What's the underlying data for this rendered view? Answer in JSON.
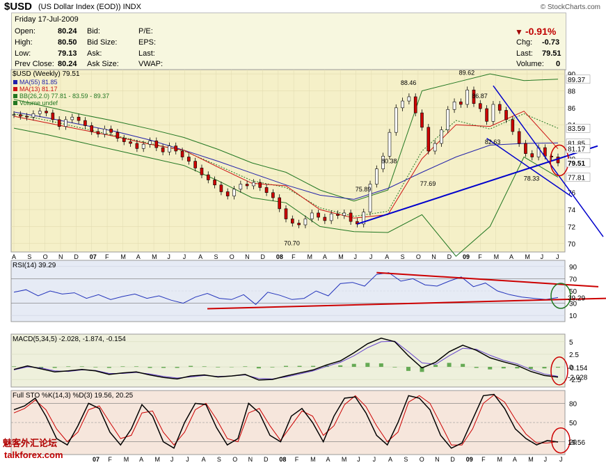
{
  "header": {
    "symbol": "$USD",
    "description": "(US Dollar Index (EOD))",
    "exchange": "INDX",
    "brand": "© StockCharts.com"
  },
  "quote": {
    "date": "Friday   17-Jul-2009",
    "open_label": "Open:",
    "open": "80.24",
    "high_label": "High:",
    "high": "80.50",
    "low_label": "Low:",
    "low": "79.13",
    "prev_label": "Prev Close:",
    "prev": "80.24",
    "bid_label": "Bid:",
    "bidsize_label": "Bid Size:",
    "ask_label": "Ask:",
    "asksize_label": "Ask Size:",
    "pe_label": "P/E:",
    "eps_label": "EPS:",
    "last_label2": "Last:",
    "vwap_label": "VWAP:",
    "pct": "-0.91%",
    "chg_label": "Chg:",
    "chg": "-0.73",
    "last_label": "Last:",
    "last": "79.51",
    "vol_label": "Volume:",
    "vol": "0"
  },
  "watermark": {
    "cn": "魅客外汇论坛",
    "en": "talkforex.com"
  },
  "colors": {
    "price_bg": "#f5f0c8",
    "rsi_bg": "#e6ebf5",
    "macd_bg": "#eef0dc",
    "sto_bg": "#f6e6dc",
    "ma55": "#2222aa",
    "ma13": "#cc1111",
    "bb": "#227722",
    "trend": "#0000cc",
    "redline": "#cc0000"
  },
  "chart_data": [
    {
      "type": "line",
      "title": "$USD (Weekly) 79.51",
      "legend": [
        "MA(55) 81.85",
        "MA(13) 81.17",
        "BB(26,2.0) 77.81 - 83.59 - 89.37",
        "Volume undef"
      ],
      "x_tick_labels": [
        "A",
        "S",
        "O",
        "N",
        "D",
        "07",
        "F",
        "M",
        "A",
        "M",
        "J",
        "J",
        "A",
        "S",
        "O",
        "N",
        "D",
        "08",
        "F",
        "M",
        "A",
        "M",
        "J",
        "J",
        "A",
        "S",
        "O",
        "N",
        "D",
        "09",
        "F",
        "M",
        "A",
        "M",
        "J",
        "J"
      ],
      "y_ticks": [
        70,
        72,
        74,
        76,
        78,
        80,
        82,
        84,
        86,
        88,
        90
      ],
      "ylim": [
        69,
        90.5
      ],
      "annotations": [
        [
          "70.70",
          70.7
        ],
        [
          "75.89",
          75.89
        ],
        [
          "80.38",
          80.38
        ],
        [
          "88.46",
          88.46
        ],
        [
          "77.69",
          77.69
        ],
        [
          "89.62",
          89.62
        ],
        [
          "86.87",
          86.87
        ],
        [
          "82.63",
          82.63
        ],
        [
          "78.33",
          78.33
        ]
      ],
      "right_labels": [
        "89.37",
        "83.59",
        "81.85",
        "81.17",
        "79.51",
        "77.81"
      ],
      "series": [
        {
          "name": "$USD",
          "values": [
            85.2,
            85.0,
            84.9,
            85.3,
            85.6,
            85.4,
            84.6,
            83.8,
            84.6,
            84.9,
            84.5,
            83.9,
            83.2,
            82.9,
            83.5,
            83.1,
            82.4,
            82.0,
            81.8,
            81.2,
            81.7,
            82.1,
            81.3,
            80.8,
            81.5,
            80.9,
            80.2,
            79.7,
            78.9,
            78.1,
            77.5,
            76.9,
            76.1,
            75.6,
            76.4,
            77.0,
            76.8,
            77.2,
            76.6,
            76.0,
            75.4,
            74.1,
            72.9,
            72.4,
            72.2,
            72.9,
            73.6,
            73.1,
            72.7,
            73.5,
            73.3,
            73.6,
            72.6,
            72.3,
            73.7,
            77.0,
            78.8,
            80.3,
            83.1,
            86.0,
            86.8,
            87.3,
            85.4,
            83.7,
            80.9,
            81.8,
            83.4,
            85.8,
            86.7,
            86.4,
            88.1,
            86.5,
            85.9,
            84.4,
            86.4,
            85.7,
            84.6,
            83.2,
            81.8,
            80.6,
            80.2,
            81.3,
            80.3,
            80.2,
            79.5
          ]
        },
        {
          "name": "MA(55)",
          "values": [
            85.5,
            84.8,
            84.0,
            83.2,
            82.2,
            81.0,
            79.7,
            78.3,
            76.9,
            75.7,
            75.2,
            76.5,
            78.4,
            80.2,
            81.6,
            81.8,
            81.85
          ]
        },
        {
          "name": "MA(13)",
          "values": [
            85.0,
            84.2,
            83.4,
            82.6,
            81.7,
            81.0,
            79.0,
            77.1,
            76.8,
            74.0,
            73.0,
            73.4,
            80.0,
            84.0,
            83.8,
            85.6,
            81.17
          ]
        },
        {
          "name": "BB upper",
          "values": [
            87.0,
            86.1,
            85.2,
            84.4,
            83.5,
            82.5,
            81.1,
            79.5,
            78.4,
            76.3,
            75.0,
            76.3,
            88.0,
            89.0,
            90.0,
            89.2,
            89.37
          ]
        },
        {
          "name": "BB middle",
          "values": [
            85.3,
            84.5,
            83.6,
            82.7,
            81.8,
            80.9,
            79.2,
            77.4,
            76.6,
            74.2,
            73.2,
            73.8,
            80.9,
            84.5,
            83.5,
            85.3,
            83.59
          ]
        },
        {
          "name": "BB lower",
          "values": [
            83.6,
            82.8,
            81.9,
            81.0,
            80.1,
            79.2,
            77.4,
            75.4,
            74.8,
            72.0,
            71.4,
            71.3,
            73.4,
            68.5,
            72.0,
            80.2,
            77.81
          ]
        }
      ]
    },
    {
      "type": "line",
      "title": "RSI(14) 39.29",
      "y_ticks": [
        10,
        30,
        50,
        70,
        90
      ],
      "ylim": [
        0,
        100
      ],
      "right_labels": [
        "39.29"
      ],
      "series": [
        {
          "name": "RSI(14)",
          "values": [
            48,
            52,
            42,
            50,
            45,
            47,
            38,
            44,
            36,
            41,
            45,
            38,
            42,
            35,
            30,
            40,
            46,
            38,
            36,
            44,
            28,
            48,
            43,
            36,
            38,
            50,
            42,
            62,
            64,
            58,
            77,
            80,
            66,
            70,
            60,
            58,
            66,
            73,
            57,
            63,
            50,
            44,
            40,
            38,
            36,
            39.29
          ]
        }
      ]
    },
    {
      "type": "line",
      "title": "MACD(5,34,5) -2.028, -1.874, -0.154",
      "y_ticks": [
        -2.5,
        0,
        2.5,
        5
      ],
      "ylim": [
        -4,
        6.5
      ],
      "right_labels": [
        "-0.154",
        "-2.028"
      ],
      "series": [
        {
          "name": "MACD",
          "values": [
            -0.5,
            0.2,
            -0.4,
            -1.0,
            -0.8,
            -0.5,
            -0.8,
            -1.5,
            -1.2,
            -1.0,
            -1.6,
            -2.1,
            -2.4,
            -1.8,
            -1.6,
            -2.0,
            -1.8,
            -1.5,
            -2.6,
            -2.5,
            -1.8,
            -1.2,
            -0.6,
            0.4,
            1.2,
            2.8,
            4.6,
            5.7,
            5.0,
            2.2,
            -0.2,
            0.9,
            3.0,
            4.3,
            3.3,
            1.8,
            1.0,
            0.3,
            -0.9,
            -1.7,
            -2.028
          ]
        },
        {
          "name": "Signal",
          "values": [
            -0.6,
            0.0,
            -0.2,
            -0.8,
            -0.9,
            -0.6,
            -0.7,
            -1.3,
            -1.3,
            -1.1,
            -1.4,
            -1.9,
            -2.2,
            -2.0,
            -1.7,
            -1.9,
            -1.8,
            -1.6,
            -2.3,
            -2.4,
            -2.0,
            -1.4,
            -0.8,
            0.1,
            0.9,
            2.2,
            3.8,
            5.0,
            5.1,
            3.0,
            0.8,
            0.5,
            2.2,
            3.7,
            3.5,
            2.3,
            1.3,
            0.6,
            -0.5,
            -1.4,
            -1.874
          ]
        },
        {
          "name": "Histogram",
          "values": [
            0.1,
            0.2,
            -0.2,
            -0.2,
            0.1,
            0.1,
            -0.1,
            -0.2,
            0.1,
            0.1,
            -0.2,
            -0.2,
            -0.2,
            0.2,
            0.1,
            -0.1,
            0.0,
            0.1,
            -0.3,
            -0.1,
            0.2,
            0.2,
            0.2,
            0.3,
            0.3,
            0.6,
            0.8,
            0.7,
            -0.1,
            -0.8,
            -1.0,
            0.4,
            0.8,
            0.6,
            -0.2,
            -0.5,
            -0.3,
            -0.3,
            -0.4,
            -0.3,
            -0.154
          ]
        }
      ]
    },
    {
      "type": "line",
      "title": "Full STO %K(14,3) %D(3) 19.56, 20.25",
      "y_ticks": [
        20,
        50,
        80
      ],
      "ylim": [
        0,
        100
      ],
      "x_tick_labels": [
        "07",
        "F",
        "M",
        "A",
        "M",
        "J",
        "J",
        "A",
        "S",
        "O",
        "N",
        "D",
        "08",
        "F",
        "M",
        "A",
        "M",
        "J",
        "J",
        "A",
        "S",
        "O",
        "N",
        "D",
        "09",
        "F",
        "M",
        "A",
        "M",
        "J",
        "J"
      ],
      "right_labels": [
        "19.56"
      ],
      "series": [
        {
          "name": "%K",
          "values": [
            70,
            76,
            88,
            60,
            25,
            15,
            45,
            80,
            72,
            35,
            15,
            40,
            78,
            60,
            20,
            10,
            50,
            80,
            78,
            42,
            15,
            25,
            80,
            65,
            30,
            20,
            60,
            72,
            50,
            20,
            60,
            88,
            90,
            65,
            30,
            15,
            50,
            92,
            88,
            70,
            30,
            10,
            18,
            55,
            92,
            94,
            72,
            40,
            25,
            15,
            22,
            19.56
          ]
        },
        {
          "name": "%D",
          "values": [
            65,
            72,
            85,
            70,
            40,
            20,
            35,
            70,
            76,
            50,
            25,
            30,
            65,
            68,
            35,
            15,
            35,
            70,
            80,
            55,
            25,
            20,
            65,
            72,
            45,
            22,
            45,
            68,
            60,
            30,
            45,
            78,
            92,
            75,
            45,
            20,
            35,
            82,
            92,
            80,
            48,
            15,
            15,
            40,
            80,
            93,
            82,
            55,
            32,
            18,
            18,
            20.25
          ]
        }
      ]
    }
  ]
}
